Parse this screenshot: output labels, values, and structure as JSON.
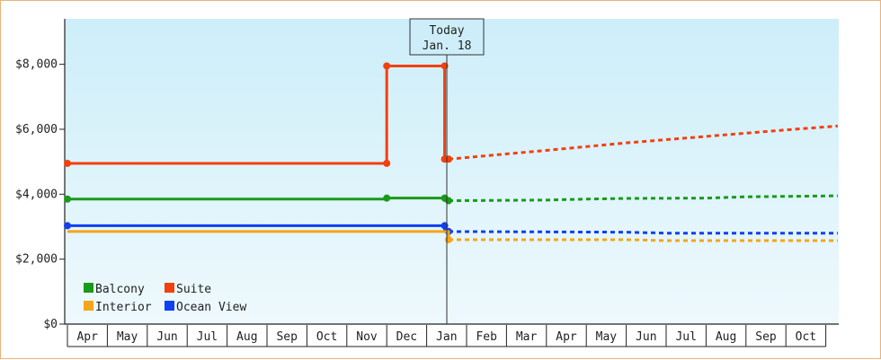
{
  "chart_data": {
    "type": "line",
    "y_ticks": [
      "$0",
      "$2,000",
      "$4,000",
      "$6,000",
      "$8,000"
    ],
    "y_tick_values": [
      0,
      2000,
      4000,
      6000,
      8000
    ],
    "ylim": [
      0,
      9400
    ],
    "x_months": [
      "Apr",
      "May",
      "Jun",
      "Jul",
      "Aug",
      "Sep",
      "Oct",
      "Nov",
      "Dec",
      "Jan",
      "Feb",
      "Mar",
      "Apr",
      "May",
      "Jun",
      "Jul",
      "Aug",
      "Sep",
      "Oct"
    ],
    "today": {
      "line1": "Today",
      "line2": "Jan. 18",
      "month_position": 9.55
    },
    "legend": {
      "position": "bottom-left",
      "entries": [
        {
          "label": "Balcony",
          "color": "#1a9a1a"
        },
        {
          "label": "Suite",
          "color": "#f2400f"
        },
        {
          "label": "Interior",
          "color": "#f5a519"
        },
        {
          "label": "Ocean View",
          "color": "#1040f0"
        }
      ]
    },
    "series": [
      {
        "key": "suite",
        "color": "#f2400f",
        "historical": [
          [
            0,
            4950
          ],
          [
            8,
            4950
          ],
          [
            8,
            7950
          ],
          [
            9.45,
            7950
          ],
          [
            9.45,
            5080
          ],
          [
            9.55,
            5080
          ]
        ],
        "markers": [
          [
            0,
            4950
          ],
          [
            8,
            4950
          ],
          [
            8,
            7950
          ],
          [
            9.45,
            7950
          ],
          [
            9.45,
            5080
          ],
          [
            9.55,
            5080
          ]
        ],
        "forecast": [
          [
            9.55,
            5080
          ],
          [
            12,
            5350
          ],
          [
            14,
            5580
          ],
          [
            16,
            5780
          ],
          [
            18,
            5980
          ],
          [
            19.3,
            6100
          ]
        ]
      },
      {
        "key": "balcony",
        "color": "#1a9a1a",
        "historical": [
          [
            0,
            3850
          ],
          [
            8,
            3850
          ],
          [
            8,
            3880
          ],
          [
            9.45,
            3880
          ],
          [
            9.45,
            3800
          ],
          [
            9.55,
            3800
          ]
        ],
        "markers": [
          [
            0,
            3850
          ],
          [
            8,
            3880
          ],
          [
            9.45,
            3880
          ],
          [
            9.55,
            3800
          ]
        ],
        "forecast": [
          [
            9.55,
            3800
          ],
          [
            12,
            3820
          ],
          [
            13,
            3850
          ],
          [
            14,
            3870
          ],
          [
            16,
            3880
          ],
          [
            17,
            3920
          ],
          [
            19.3,
            3950
          ]
        ]
      },
      {
        "key": "ocean_view",
        "color": "#1040f0",
        "historical": [
          [
            0,
            3030
          ],
          [
            9.45,
            3030
          ],
          [
            9.45,
            2850
          ],
          [
            9.55,
            2850
          ]
        ],
        "markers": [
          [
            0,
            3030
          ],
          [
            9.45,
            3030
          ],
          [
            9.55,
            2850
          ]
        ],
        "forecast": [
          [
            9.55,
            2850
          ],
          [
            14,
            2830
          ],
          [
            15,
            2800
          ],
          [
            19.3,
            2800
          ]
        ]
      },
      {
        "key": "interior",
        "color": "#f5a519",
        "historical": [
          [
            0,
            2850
          ],
          [
            9.55,
            2850
          ],
          [
            9.55,
            2600
          ]
        ],
        "markers": [
          [
            9.55,
            2600
          ]
        ],
        "forecast": [
          [
            9.55,
            2600
          ],
          [
            14,
            2600
          ],
          [
            15,
            2570
          ],
          [
            19.3,
            2570
          ]
        ]
      }
    ]
  }
}
